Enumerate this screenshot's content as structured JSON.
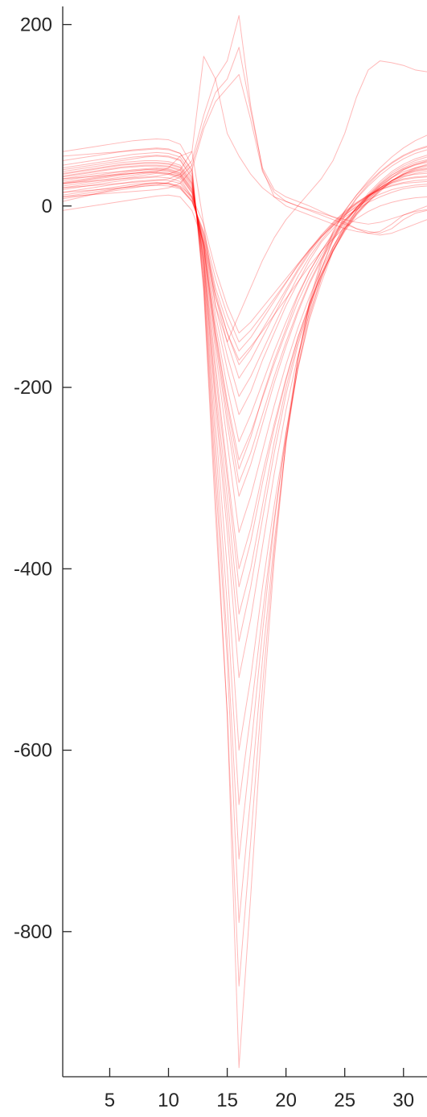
{
  "chart_data": {
    "type": "line",
    "title": "",
    "xlabel": "",
    "ylabel": "",
    "xlim": [
      1,
      32
    ],
    "ylim": [
      -960,
      220
    ],
    "x_ticks": [
      5,
      10,
      15,
      20,
      25,
      30
    ],
    "y_ticks": [
      200,
      0,
      -200,
      -400,
      -600,
      -800
    ],
    "x_tick_labels": [
      "5",
      "10",
      "15",
      "20",
      "25",
      "30"
    ],
    "y_tick_labels": [
      "200",
      "0",
      "-200",
      "-400",
      "-600",
      "-800"
    ],
    "grid": false,
    "legend": "none",
    "line_color": "#ff0000",
    "line_opacity": 0.28,
    "x": [
      1,
      2,
      3,
      4,
      5,
      6,
      7,
      8,
      9,
      10,
      11,
      12,
      13,
      14,
      15,
      16,
      17,
      18,
      19,
      20,
      21,
      22,
      23,
      24,
      25,
      26,
      27,
      28,
      29,
      30,
      31,
      32
    ],
    "series": [
      {
        "values": [
          20,
          22,
          24,
          26,
          28,
          30,
          32,
          34,
          36,
          35,
          30,
          10,
          -40,
          -120,
          -180,
          -230,
          -205,
          -170,
          -140,
          -110,
          -85,
          -60,
          -40,
          -25,
          -10,
          0,
          10,
          20,
          28,
          33,
          35,
          36
        ]
      },
      {
        "values": [
          25,
          27,
          29,
          31,
          33,
          35,
          36,
          37,
          37,
          36,
          33,
          15,
          -45,
          -140,
          -220,
          -290,
          -255,
          -210,
          -170,
          -135,
          -100,
          -72,
          -50,
          -30,
          -15,
          -2,
          10,
          20,
          28,
          34,
          38,
          40
        ]
      },
      {
        "values": [
          30,
          32,
          34,
          36,
          37,
          38,
          39,
          40,
          40,
          39,
          35,
          18,
          -50,
          -160,
          -260,
          -360,
          -320,
          -270,
          -220,
          -175,
          -135,
          -100,
          -70,
          -45,
          -25,
          -8,
          5,
          18,
          28,
          35,
          40,
          42
        ]
      },
      {
        "values": [
          15,
          17,
          19,
          21,
          23,
          25,
          27,
          28,
          29,
          28,
          25,
          8,
          -35,
          -100,
          -150,
          -190,
          -170,
          -145,
          -120,
          -95,
          -72,
          -52,
          -35,
          -20,
          -8,
          3,
          12,
          20,
          26,
          30,
          32,
          33
        ]
      },
      {
        "values": [
          35,
          37,
          39,
          41,
          43,
          45,
          46,
          47,
          47,
          46,
          42,
          25,
          -60,
          -200,
          -320,
          -450,
          -400,
          -330,
          -260,
          -200,
          -150,
          -110,
          -75,
          -45,
          -22,
          -5,
          10,
          22,
          32,
          40,
          45,
          48
        ]
      },
      {
        "values": [
          40,
          42,
          44,
          46,
          48,
          50,
          52,
          54,
          55,
          54,
          50,
          30,
          -70,
          -240,
          -400,
          -600,
          -520,
          -420,
          -330,
          -250,
          -180,
          -125,
          -85,
          -50,
          -25,
          -5,
          12,
          25,
          36,
          44,
          50,
          54
        ]
      },
      {
        "values": [
          10,
          12,
          14,
          16,
          18,
          20,
          22,
          24,
          25,
          24,
          20,
          5,
          -30,
          -90,
          -130,
          -160,
          -145,
          -125,
          -105,
          -85,
          -65,
          -48,
          -32,
          -18,
          -6,
          4,
          12,
          18,
          22,
          25,
          26,
          27
        ]
      },
      {
        "values": [
          28,
          30,
          32,
          34,
          36,
          38,
          40,
          41,
          42,
          41,
          37,
          20,
          -48,
          -150,
          -240,
          -320,
          -285,
          -240,
          -195,
          -155,
          -118,
          -86,
          -60,
          -38,
          -18,
          -2,
          12,
          24,
          34,
          41,
          46,
          49
        ]
      },
      {
        "values": [
          45,
          47,
          49,
          51,
          53,
          55,
          57,
          58,
          59,
          58,
          54,
          35,
          -80,
          -280,
          -480,
          -720,
          -600,
          -470,
          -350,
          -250,
          -170,
          -110,
          -70,
          -38,
          -12,
          8,
          22,
          34,
          44,
          52,
          58,
          62
        ]
      },
      {
        "values": [
          50,
          52,
          54,
          56,
          58,
          60,
          62,
          63,
          64,
          63,
          58,
          38,
          -90,
          -320,
          -560,
          -950,
          -760,
          -560,
          -390,
          -260,
          -170,
          -105,
          -60,
          -28,
          -5,
          12,
          26,
          38,
          48,
          56,
          62,
          66
        ]
      },
      {
        "values": [
          22,
          24,
          26,
          28,
          30,
          32,
          34,
          36,
          37,
          36,
          32,
          14,
          -42,
          -130,
          -200,
          -260,
          -230,
          -195,
          -160,
          -128,
          -98,
          -72,
          -50,
          -32,
          -16,
          -4,
          8,
          18,
          26,
          32,
          36,
          38
        ]
      },
      {
        "values": [
          32,
          34,
          36,
          38,
          40,
          42,
          43,
          44,
          44,
          43,
          39,
          22,
          -55,
          -175,
          -290,
          -400,
          -355,
          -295,
          -240,
          -190,
          -145,
          -108,
          -76,
          -50,
          -28,
          -10,
          4,
          16,
          27,
          35,
          41,
          44
        ]
      },
      {
        "values": [
          18,
          20,
          22,
          24,
          26,
          28,
          30,
          31,
          32,
          31,
          27,
          10,
          -38,
          -110,
          -165,
          -210,
          -188,
          -160,
          -132,
          -104,
          -78,
          -56,
          -38,
          -22,
          -9,
          2,
          11,
          19,
          25,
          29,
          31,
          32
        ]
      },
      {
        "values": [
          38,
          40,
          42,
          44,
          46,
          48,
          49,
          50,
          50,
          49,
          45,
          28,
          -65,
          -220,
          -360,
          -520,
          -455,
          -375,
          -295,
          -225,
          -165,
          -118,
          -80,
          -48,
          -24,
          -6,
          10,
          23,
          34,
          42,
          48,
          51
        ]
      },
      {
        "values": [
          5,
          8,
          11,
          14,
          17,
          20,
          22,
          24,
          25,
          25,
          22,
          10,
          -20,
          -70,
          -110,
          -140,
          -128,
          -112,
          -96,
          -80,
          -64,
          -48,
          -34,
          -22,
          -12,
          -4,
          4,
          10,
          15,
          19,
          21,
          22
        ]
      },
      {
        "values": [
          60,
          62,
          64,
          66,
          68,
          70,
          72,
          73,
          74,
          73,
          68,
          45,
          -95,
          -340,
          -560,
          -860,
          -700,
          -530,
          -380,
          -260,
          -170,
          -108,
          -64,
          -30,
          -6,
          12,
          28,
          42,
          54,
          64,
          72,
          78
        ]
      },
      {
        "values": [
          26,
          28,
          30,
          32,
          34,
          36,
          38,
          40,
          41,
          40,
          36,
          18,
          -46,
          -145,
          -230,
          -305,
          -272,
          -230,
          -188,
          -150,
          -115,
          -84,
          -58,
          -36,
          -17,
          -2,
          11,
          22,
          31,
          38,
          42,
          45
        ]
      },
      {
        "values": [
          12,
          14,
          16,
          18,
          20,
          22,
          24,
          25,
          26,
          25,
          21,
          6,
          -32,
          -95,
          -140,
          -175,
          -158,
          -136,
          -114,
          -92,
          -70,
          -50,
          -33,
          -19,
          -7,
          3,
          11,
          18,
          23,
          26,
          28,
          29
        ]
      },
      {
        "values": [
          42,
          44,
          46,
          48,
          50,
          52,
          54,
          55,
          56,
          55,
          51,
          32,
          -75,
          -260,
          -440,
          -660,
          -560,
          -450,
          -345,
          -255,
          -180,
          -122,
          -80,
          -46,
          -20,
          -2,
          14,
          27,
          38,
          46,
          52,
          56
        ]
      },
      {
        "values": [
          33,
          35,
          37,
          39,
          41,
          43,
          44,
          45,
          45,
          44,
          40,
          24,
          -58,
          -185,
          -300,
          -420,
          -370,
          -305,
          -245,
          -192,
          -146,
          -108,
          -76,
          -49,
          -27,
          -9,
          5,
          17,
          28,
          36,
          42,
          46
        ]
      },
      {
        "values": [
          20,
          21,
          22,
          23,
          24,
          25,
          26,
          27,
          28,
          30,
          35,
          50,
          100,
          140,
          160,
          210,
          110,
          40,
          10,
          0,
          -5,
          -10,
          -15,
          -20,
          -25,
          -28,
          -30,
          -28,
          -20,
          -10,
          -5,
          0
        ]
      },
      {
        "values": [
          15,
          16,
          17,
          18,
          19,
          20,
          21,
          22,
          23,
          26,
          32,
          45,
          90,
          125,
          140,
          175,
          105,
          42,
          18,
          10,
          5,
          0,
          -6,
          -12,
          -18,
          -25,
          -30,
          -32,
          -30,
          -25,
          -20,
          -15
        ]
      },
      {
        "values": [
          25,
          26,
          27,
          28,
          29,
          30,
          31,
          32,
          33,
          35,
          40,
          60,
          165,
          140,
          80,
          55,
          35,
          20,
          10,
          5,
          0,
          -5,
          -10,
          -15,
          -20,
          -25,
          -28,
          -30,
          -25,
          -15,
          -8,
          -5
        ]
      },
      {
        "values": [
          10,
          11,
          12,
          13,
          14,
          15,
          16,
          17,
          18,
          20,
          25,
          40,
          85,
          115,
          130,
          145,
          95,
          38,
          15,
          5,
          0,
          -4,
          -8,
          -12,
          -15,
          -18,
          -20,
          -18,
          -14,
          -10,
          -6,
          -4
        ]
      },
      {
        "values": [
          30,
          31,
          32,
          33,
          34,
          35,
          36,
          37,
          38,
          42,
          55,
          60,
          -20,
          -110,
          -150,
          -120,
          -90,
          -60,
          -35,
          -15,
          0,
          15,
          30,
          50,
          80,
          120,
          150,
          160,
          158,
          155,
          150,
          148
        ]
      },
      {
        "values": [
          -5,
          -3,
          -1,
          1,
          3,
          5,
          7,
          9,
          11,
          12,
          10,
          -5,
          -40,
          -100,
          -140,
          -170,
          -155,
          -138,
          -120,
          -102,
          -84,
          -66,
          -50,
          -36,
          -24,
          -14,
          -6,
          0,
          4,
          7,
          9,
          10
        ]
      },
      {
        "values": [
          55,
          56,
          57,
          58,
          59,
          60,
          61,
          62,
          63,
          62,
          58,
          40,
          -85,
          -300,
          -500,
          -790,
          -650,
          -500,
          -370,
          -262,
          -178,
          -115,
          -70,
          -36,
          -10,
          9,
          24,
          37,
          47,
          55,
          61,
          65
        ]
      },
      {
        "values": [
          36,
          38,
          40,
          42,
          44,
          46,
          47,
          48,
          48,
          47,
          43,
          26,
          -62,
          -210,
          -340,
          -480,
          -420,
          -345,
          -272,
          -208,
          -154,
          -112,
          -78,
          -50,
          -26,
          -8,
          7,
          20,
          31,
          40,
          46,
          50
        ]
      },
      {
        "values": [
          8,
          10,
          12,
          14,
          16,
          18,
          20,
          22,
          23,
          22,
          19,
          5,
          -28,
          -80,
          -120,
          -150,
          -137,
          -120,
          -102,
          -84,
          -66,
          -49,
          -34,
          -21,
          -10,
          -1,
          7,
          13,
          18,
          21,
          23,
          24
        ]
      },
      {
        "values": [
          24,
          26,
          28,
          30,
          32,
          34,
          36,
          38,
          39,
          38,
          34,
          16,
          -44,
          -138,
          -215,
          -280,
          -250,
          -212,
          -174,
          -139,
          -106,
          -78,
          -54,
          -34,
          -16,
          -3,
          9,
          20,
          28,
          35,
          39,
          41
        ]
      }
    ]
  }
}
